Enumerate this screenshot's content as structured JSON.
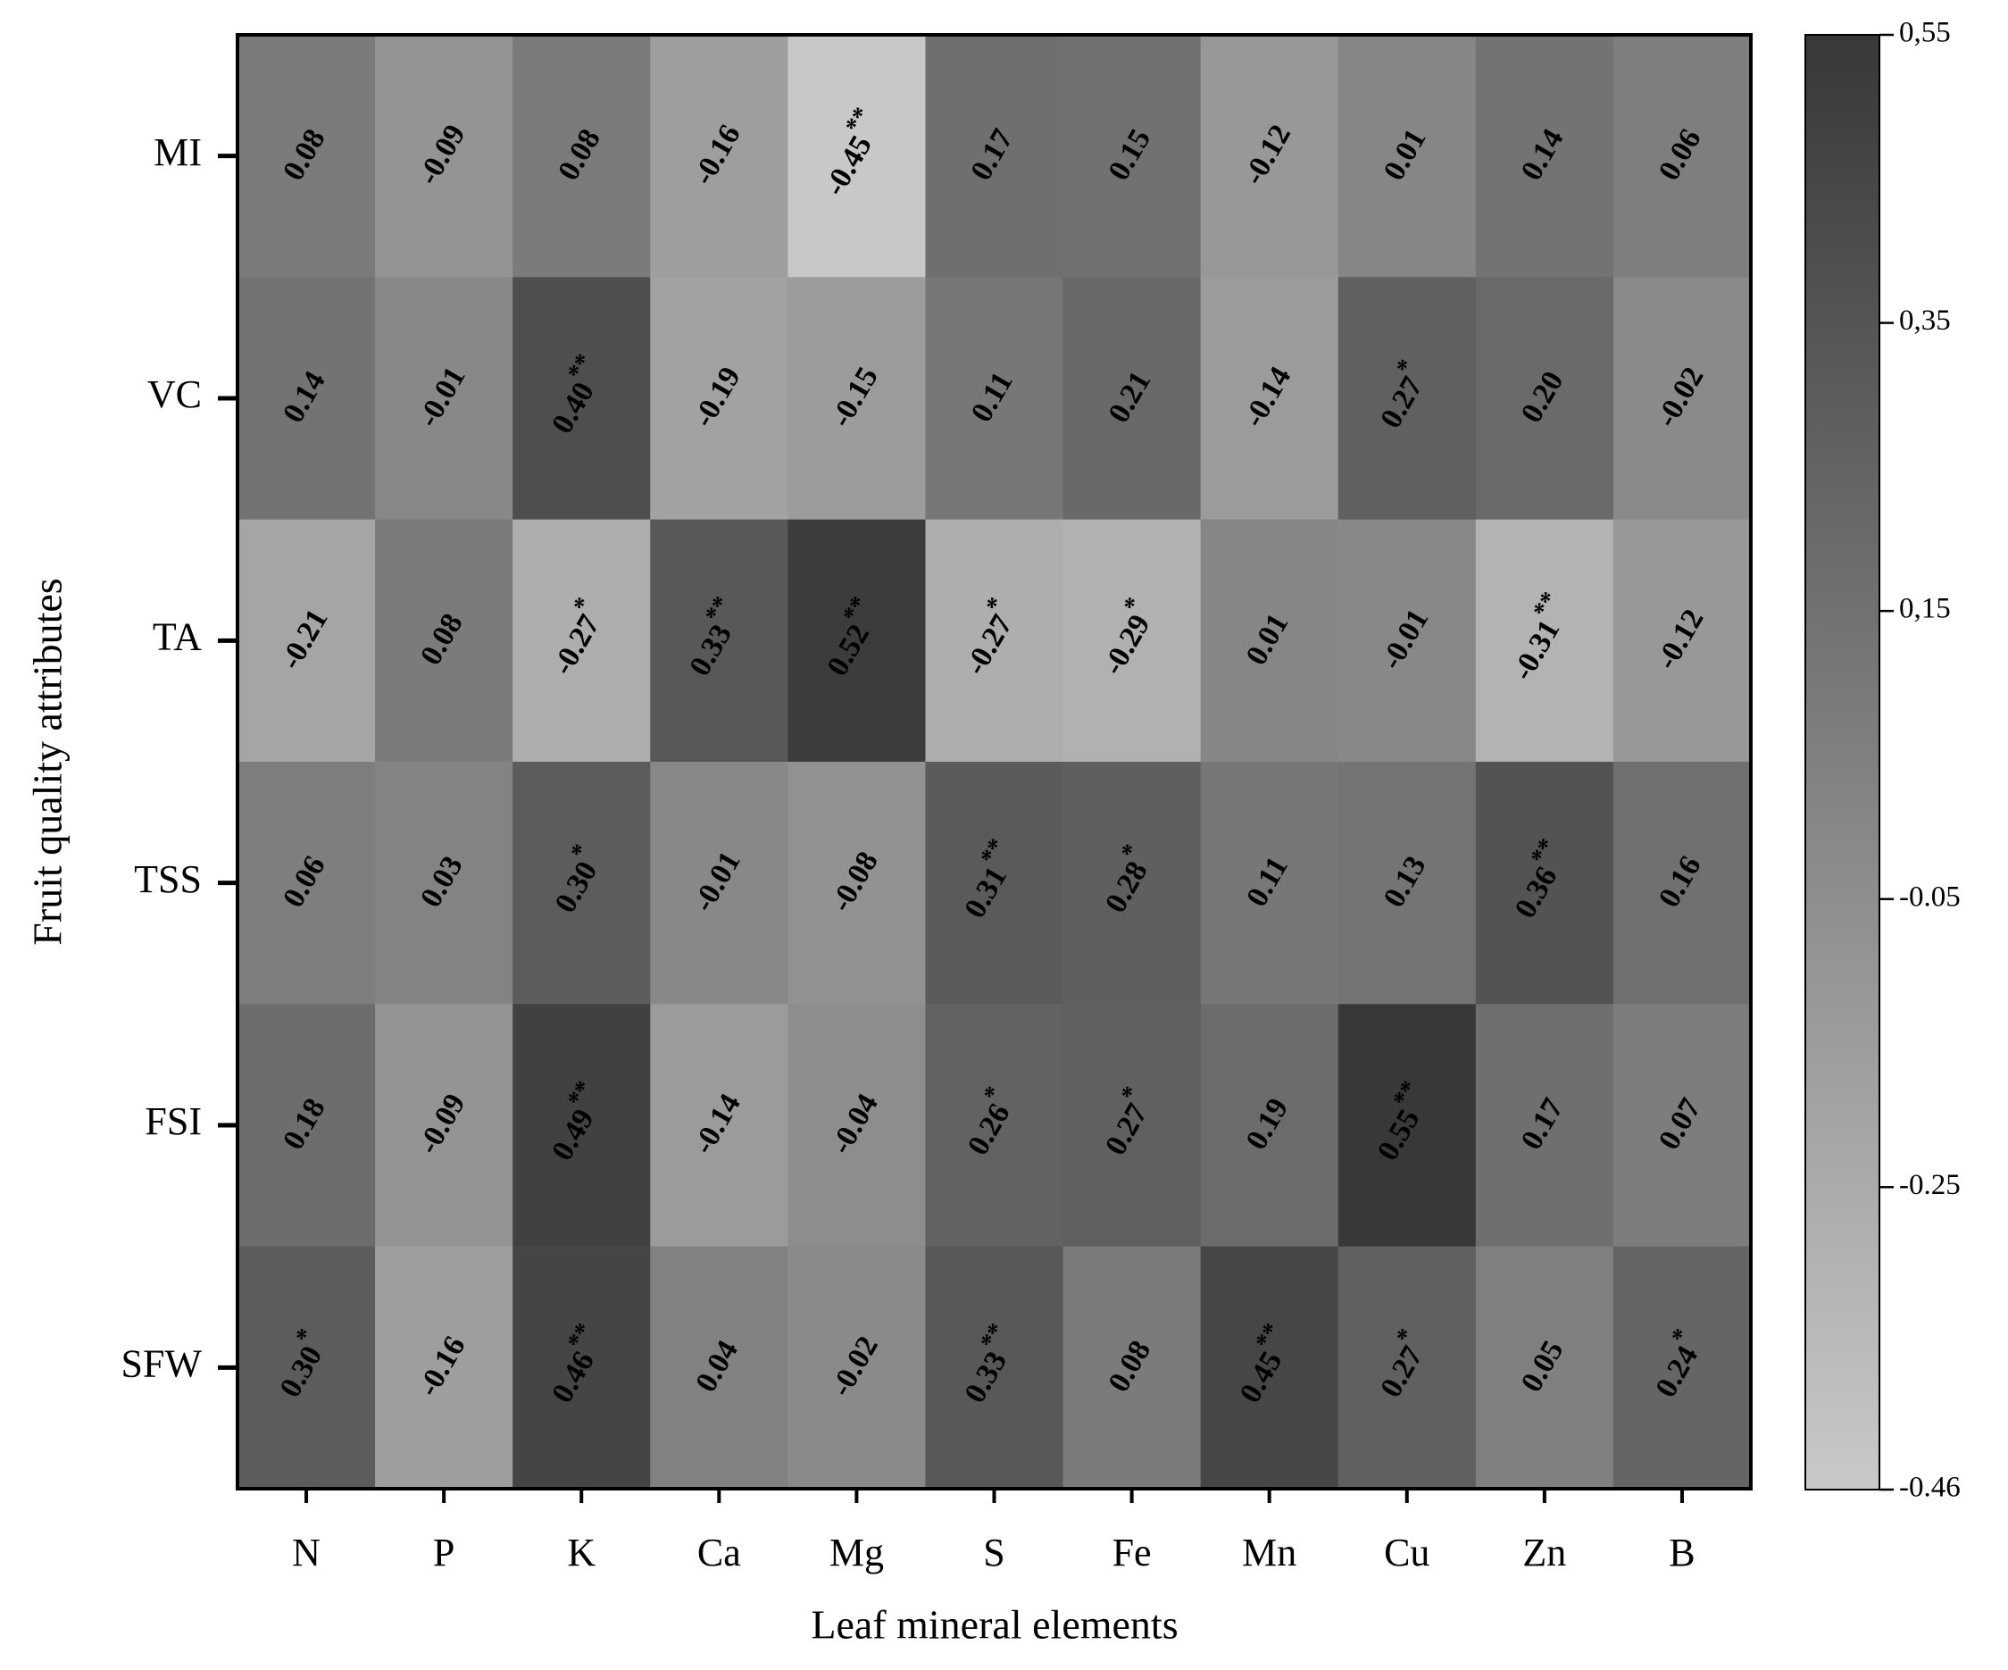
{
  "chart_data": {
    "type": "heatmap",
    "x_label": "Leaf mineral elements",
    "y_label": "Fruit quality attributes",
    "x": [
      "N",
      "P",
      "K",
      "Ca",
      "Mg",
      "S",
      "Fe",
      "Mn",
      "Cu",
      "Zn",
      "B"
    ],
    "y": [
      "MI",
      "VC",
      "TA",
      "TSS",
      "FSI",
      "SFW"
    ],
    "values": [
      [
        0.08,
        -0.09,
        0.08,
        -0.16,
        -0.45,
        0.17,
        0.15,
        -0.12,
        0.01,
        0.14,
        0.06
      ],
      [
        0.14,
        -0.01,
        0.4,
        -0.19,
        -0.15,
        0.11,
        0.21,
        -0.14,
        0.27,
        0.2,
        -0.02
      ],
      [
        -0.21,
        0.08,
        -0.27,
        0.33,
        0.52,
        -0.27,
        -0.29,
        0.01,
        -0.01,
        -0.31,
        -0.12
      ],
      [
        0.06,
        0.03,
        0.3,
        -0.01,
        -0.08,
        0.31,
        0.28,
        0.11,
        0.13,
        0.36,
        0.16
      ],
      [
        0.18,
        -0.09,
        0.49,
        -0.14,
        -0.04,
        0.26,
        0.27,
        0.19,
        0.55,
        0.17,
        0.07
      ],
      [
        0.3,
        -0.16,
        0.46,
        0.04,
        -0.02,
        0.33,
        0.08,
        0.45,
        0.27,
        0.05,
        0.24
      ]
    ],
    "value_labels": [
      [
        "0.08",
        "-0.09",
        "0.08",
        "-0.16",
        "-0.45",
        "0.17",
        "0.15",
        "-0.12",
        "0.01",
        "0.14",
        "0.06"
      ],
      [
        "0.14",
        "-0.01",
        "0.40",
        "-0.19",
        "-0.15",
        "0.11",
        "0.21",
        "-0.14",
        "0.27",
        "0.20",
        "-0.02"
      ],
      [
        "-0.21",
        "0.08",
        "-0.27",
        "0.33",
        "0.52",
        "-0.27",
        "-0.29",
        "0.01",
        "-0.01",
        "-0.31",
        "-0.12"
      ],
      [
        "0.06",
        "0.03",
        "0.30",
        "-0.01",
        "-0.08",
        "0.31",
        "0.28",
        "0.11",
        "0.13",
        "0.36",
        "0.16"
      ],
      [
        "0.18",
        "-0.09",
        "0.49",
        "-0.14",
        "-0.04",
        "0.26",
        "0.27",
        "0.19",
        "0.55",
        "0.17",
        "0.07"
      ],
      [
        "0.30",
        "-0.16",
        "0.46",
        "0.04",
        "-0.02",
        "0.33",
        "0.08",
        "0.45",
        "0.27",
        "0.05",
        "0.24"
      ]
    ],
    "significance": [
      [
        null,
        null,
        null,
        null,
        "**",
        null,
        null,
        null,
        null,
        null,
        null
      ],
      [
        null,
        null,
        "**",
        null,
        null,
        null,
        null,
        null,
        "*",
        null,
        null
      ],
      [
        null,
        null,
        "*",
        "**",
        "**",
        "*",
        "*",
        null,
        null,
        "**",
        null
      ],
      [
        null,
        null,
        "*",
        null,
        null,
        "**",
        "*",
        null,
        null,
        "**",
        null
      ],
      [
        null,
        null,
        "**",
        null,
        null,
        "*",
        "*",
        null,
        "**",
        null,
        null
      ],
      [
        "*",
        null,
        "**",
        null,
        null,
        "**",
        null,
        "**",
        "*",
        null,
        "*"
      ]
    ],
    "colorbar_lim": [
      -0.46,
      0.55
    ],
    "colorbar_ticks": [
      {
        "value": 0.55,
        "label": "0,55"
      },
      {
        "value": 0.35,
        "label": "0,35"
      },
      {
        "value": 0.15,
        "label": "0,15"
      },
      -0.05,
      -0.25,
      -0.46
    ],
    "colormap": [
      "#c9c9c9",
      "#383838"
    ]
  }
}
